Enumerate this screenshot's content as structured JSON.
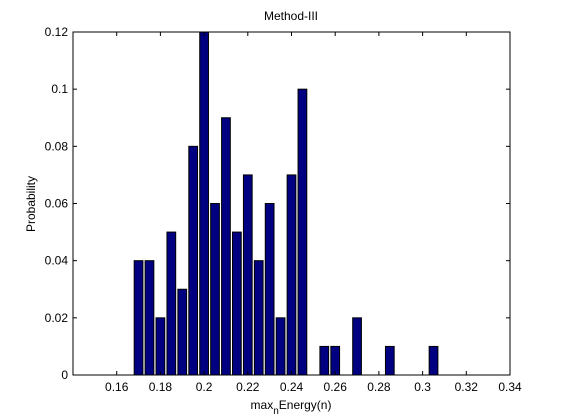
{
  "chart_data": {
    "type": "bar",
    "title": "Method-III",
    "xlabel_main": "max",
    "xlabel_sub": "n",
    "xlabel_rest": "Energy(n)",
    "ylabel": "Probability",
    "xlim": [
      0.14,
      0.34
    ],
    "ylim": [
      0,
      0.12
    ],
    "xticks": [
      "0.16",
      "0.18",
      "0.2",
      "0.22",
      "0.24",
      "0.26",
      "0.28",
      "0.3",
      "0.32",
      "0.34"
    ],
    "yticks": [
      "0",
      "0.02",
      "0.04",
      "0.06",
      "0.08",
      "0.1",
      "0.12"
    ],
    "grid": false,
    "bar_color": "#000080",
    "bins": [
      0.17,
      0.175,
      0.18,
      0.185,
      0.19,
      0.195,
      0.2,
      0.205,
      0.21,
      0.215,
      0.22,
      0.225,
      0.23,
      0.235,
      0.24,
      0.245,
      0.255,
      0.26,
      0.27,
      0.285,
      0.305
    ],
    "values": [
      0.04,
      0.04,
      0.02,
      0.05,
      0.03,
      0.08,
      0.12,
      0.06,
      0.09,
      0.05,
      0.07,
      0.04,
      0.06,
      0.02,
      0.07,
      0.1,
      0.01,
      0.01,
      0.02,
      0.01,
      0.01
    ]
  }
}
